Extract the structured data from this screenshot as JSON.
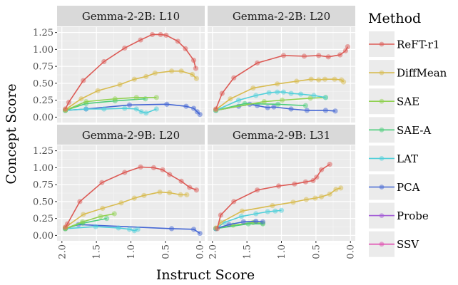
{
  "chart_data": {
    "type": "line",
    "xlabel": "Instruct Score",
    "ylabel": "Concept Score",
    "xlim": [
      2.07,
      -0.07
    ],
    "ylim": [
      -0.08,
      1.33
    ],
    "x_reversed": true,
    "xticks": [
      "2.0",
      "1.5",
      "1.0",
      "0.5",
      "0.0"
    ],
    "yticks": [
      "0.00",
      "0.25",
      "0.50",
      "0.75",
      "1.00",
      "1.25"
    ],
    "grid": true,
    "legend": {
      "title": "Method",
      "position": "right"
    },
    "methods": [
      {
        "name": "ReFT-r1",
        "color": "#DC5A55"
      },
      {
        "name": "DiffMean",
        "color": "#D8BB4F"
      },
      {
        "name": "SAE",
        "color": "#8FD14F"
      },
      {
        "name": "SAE-A",
        "color": "#4CCD7B"
      },
      {
        "name": "LAT",
        "color": "#4FCFDA"
      },
      {
        "name": "PCA",
        "color": "#4466D4"
      },
      {
        "name": "Probe",
        "color": "#A35BD6"
      },
      {
        "name": "SSV",
        "color": "#E04DB0"
      }
    ],
    "panels": [
      {
        "title": "Gemma-2-2B: L10",
        "series": {
          "PCA": [
            [
              1.95,
              0.1
            ],
            [
              1.65,
              0.12
            ],
            [
              1.02,
              0.18
            ],
            [
              0.48,
              0.19
            ],
            [
              0.2,
              0.16
            ],
            [
              0.09,
              0.13
            ],
            [
              0.04,
              0.08
            ],
            [
              0.0,
              0.04
            ]
          ],
          "LAT": [
            [
              1.95,
              0.1
            ],
            [
              1.65,
              0.12
            ],
            [
              1.39,
              0.12
            ],
            [
              1.09,
              0.13
            ],
            [
              0.92,
              0.12
            ],
            [
              0.85,
              0.08
            ],
            [
              0.78,
              0.06
            ],
            [
              0.63,
              0.12
            ]
          ],
          "SAE-A": [
            [
              1.95,
              0.1
            ],
            [
              1.65,
              0.2
            ],
            [
              1.23,
              0.24
            ],
            [
              0.79,
              0.27
            ]
          ],
          "SAE": [
            [
              1.95,
              0.1
            ],
            [
              1.65,
              0.23
            ],
            [
              1.23,
              0.27
            ],
            [
              0.92,
              0.29
            ],
            [
              0.63,
              0.29
            ]
          ],
          "DiffMean": [
            [
              1.95,
              0.11
            ],
            [
              1.72,
              0.27
            ],
            [
              1.48,
              0.39
            ],
            [
              1.16,
              0.48
            ],
            [
              0.95,
              0.56
            ],
            [
              0.78,
              0.6
            ],
            [
              0.65,
              0.65
            ],
            [
              0.41,
              0.68
            ],
            [
              0.27,
              0.68
            ],
            [
              0.11,
              0.63
            ],
            [
              0.05,
              0.57
            ]
          ],
          "ReFT-r1": [
            [
              1.95,
              0.12
            ],
            [
              1.9,
              0.22
            ],
            [
              1.69,
              0.54
            ],
            [
              1.39,
              0.82
            ],
            [
              1.09,
              1.02
            ],
            [
              0.86,
              1.14
            ],
            [
              0.69,
              1.22
            ],
            [
              0.57,
              1.22
            ],
            [
              0.49,
              1.21
            ],
            [
              0.32,
              1.12
            ],
            [
              0.21,
              1.01
            ],
            [
              0.09,
              0.84
            ],
            [
              0.06,
              0.72
            ]
          ]
        }
      },
      {
        "title": "Gemma-2-2B: L20",
        "series": {
          "PCA": [
            [
              1.95,
              0.1
            ],
            [
              1.62,
              0.16
            ],
            [
              1.46,
              0.19
            ],
            [
              1.35,
              0.17
            ],
            [
              1.2,
              0.14
            ],
            [
              1.11,
              0.15
            ],
            [
              0.86,
              0.12
            ],
            [
              0.63,
              0.1
            ],
            [
              0.36,
              0.1
            ],
            [
              0.22,
              0.09
            ]
          ],
          "SAE-A": [
            [
              1.95,
              0.1
            ],
            [
              1.53,
              0.2
            ],
            [
              1.05,
              0.19
            ],
            [
              0.65,
              0.17
            ]
          ],
          "SAE": [
            [
              1.95,
              0.1
            ],
            [
              1.25,
              0.23
            ],
            [
              0.99,
              0.25
            ],
            [
              0.58,
              0.28
            ],
            [
              0.36,
              0.29
            ]
          ],
          "LAT": [
            [
              1.95,
              0.1
            ],
            [
              1.62,
              0.25
            ],
            [
              1.37,
              0.32
            ],
            [
              1.18,
              0.36
            ],
            [
              1.06,
              0.37
            ],
            [
              0.97,
              0.37
            ],
            [
              0.86,
              0.35
            ],
            [
              0.72,
              0.34
            ],
            [
              0.53,
              0.32
            ],
            [
              0.36,
              0.29
            ]
          ],
          "DiffMean": [
            [
              1.95,
              0.11
            ],
            [
              1.74,
              0.27
            ],
            [
              1.41,
              0.43
            ],
            [
              1.06,
              0.49
            ],
            [
              0.78,
              0.53
            ],
            [
              0.57,
              0.56
            ],
            [
              0.46,
              0.55
            ],
            [
              0.37,
              0.56
            ],
            [
              0.23,
              0.56
            ],
            [
              0.13,
              0.55
            ],
            [
              0.1,
              0.52
            ]
          ],
          "ReFT-r1": [
            [
              1.95,
              0.12
            ],
            [
              1.86,
              0.35
            ],
            [
              1.69,
              0.58
            ],
            [
              1.35,
              0.8
            ],
            [
              0.97,
              0.91
            ],
            [
              0.67,
              0.9
            ],
            [
              0.46,
              0.91
            ],
            [
              0.32,
              0.89
            ],
            [
              0.15,
              0.92
            ],
            [
              0.07,
              0.98
            ],
            [
              0.04,
              1.04
            ]
          ]
        }
      },
      {
        "title": "Gemma-2-9B: L20",
        "series": {
          "PCA": [
            [
              1.95,
              0.1
            ],
            [
              1.76,
              0.16
            ],
            [
              0.41,
              0.1
            ],
            [
              0.09,
              0.09
            ],
            [
              0.0,
              0.03
            ]
          ],
          "LAT": [
            [
              1.95,
              0.1
            ],
            [
              1.51,
              0.13
            ],
            [
              1.18,
              0.11
            ],
            [
              1.02,
              0.09
            ],
            [
              0.95,
              0.07
            ],
            [
              0.9,
              0.09
            ]
          ],
          "SAE-A": [
            [
              1.95,
              0.1
            ],
            [
              1.7,
              0.18
            ],
            [
              1.35,
              0.25
            ]
          ],
          "SAE": [
            [
              1.95,
              0.1
            ],
            [
              1.7,
              0.2
            ],
            [
              1.44,
              0.28
            ],
            [
              1.24,
              0.32
            ]
          ],
          "DiffMean": [
            [
              1.95,
              0.12
            ],
            [
              1.69,
              0.31
            ],
            [
              1.41,
              0.4
            ],
            [
              1.14,
              0.48
            ],
            [
              0.95,
              0.55
            ],
            [
              0.81,
              0.59
            ],
            [
              0.58,
              0.64
            ],
            [
              0.44,
              0.63
            ],
            [
              0.28,
              0.6
            ],
            [
              0.19,
              0.6
            ]
          ],
          "ReFT-r1": [
            [
              1.95,
              0.12
            ],
            [
              1.92,
              0.17
            ],
            [
              1.74,
              0.5
            ],
            [
              1.42,
              0.78
            ],
            [
              1.09,
              0.93
            ],
            [
              0.86,
              1.01
            ],
            [
              0.67,
              1.0
            ],
            [
              0.54,
              0.97
            ],
            [
              0.44,
              0.9
            ],
            [
              0.27,
              0.8
            ],
            [
              0.15,
              0.71
            ],
            [
              0.05,
              0.67
            ]
          ]
        }
      },
      {
        "title": "Gemma-2-9B: L31",
        "series": {
          "SAE": [
            [
              1.95,
              0.1
            ],
            [
              1.7,
              0.15
            ],
            [
              1.41,
              0.19
            ],
            [
              1.27,
              0.18
            ]
          ],
          "SAE-A": [
            [
              1.95,
              0.1
            ],
            [
              1.48,
              0.17
            ],
            [
              1.27,
              0.17
            ]
          ],
          "PCA": [
            [
              1.95,
              0.1
            ],
            [
              1.76,
              0.16
            ],
            [
              1.55,
              0.2
            ],
            [
              1.37,
              0.21
            ],
            [
              1.27,
              0.2
            ]
          ],
          "LAT": [
            [
              1.95,
              0.1
            ],
            [
              1.83,
              0.19
            ],
            [
              1.58,
              0.28
            ],
            [
              1.37,
              0.32
            ],
            [
              1.2,
              0.35
            ],
            [
              1.09,
              0.36
            ],
            [
              1.0,
              0.37
            ]
          ],
          "DiffMean": [
            [
              1.95,
              0.11
            ],
            [
              1.88,
              0.19
            ],
            [
              1.57,
              0.36
            ],
            [
              1.13,
              0.44
            ],
            [
              0.83,
              0.49
            ],
            [
              0.64,
              0.53
            ],
            [
              0.51,
              0.55
            ],
            [
              0.42,
              0.57
            ],
            [
              0.3,
              0.61
            ],
            [
              0.21,
              0.68
            ],
            [
              0.14,
              0.7
            ]
          ],
          "ReFT-r1": [
            [
              1.93,
              0.1
            ],
            [
              1.88,
              0.3
            ],
            [
              1.69,
              0.5
            ],
            [
              1.35,
              0.67
            ],
            [
              1.04,
              0.73
            ],
            [
              0.81,
              0.76
            ],
            [
              0.65,
              0.79
            ],
            [
              0.54,
              0.81
            ],
            [
              0.49,
              0.86
            ],
            [
              0.42,
              0.97
            ],
            [
              0.3,
              1.05
            ]
          ]
        }
      }
    ]
  }
}
